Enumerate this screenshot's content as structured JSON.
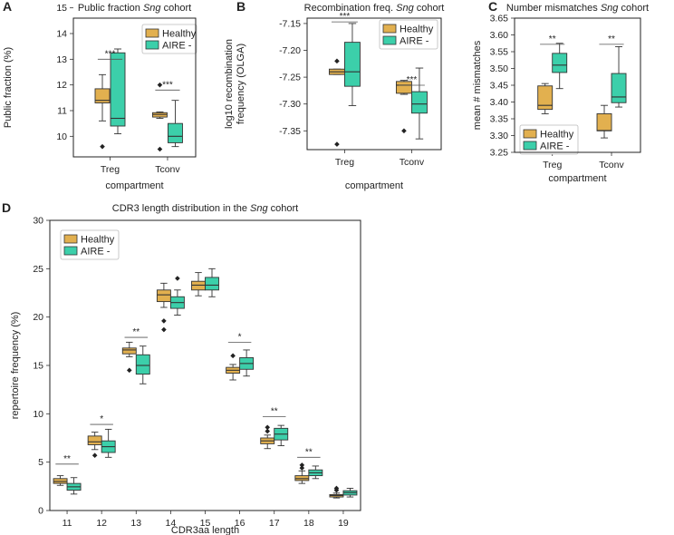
{
  "colors": {
    "healthy": "#E2B04F",
    "aire": "#3CCFAA",
    "line": "#333333"
  },
  "chart_data": [
    {
      "id": "A",
      "type": "boxplot",
      "panel_label": "A",
      "title_pre": "Public fraction ",
      "title_italic": "Sng",
      "title_post": " cohort",
      "xlabel": "compartment",
      "ylabel": "Public fraction (%)",
      "ylim": [
        9.2,
        14.6
      ],
      "yticks": [
        10,
        11,
        12,
        13,
        14,
        15
      ],
      "categories": [
        "Treg",
        "Tconv"
      ],
      "legend": [
        "Healthy",
        "AIRE -"
      ],
      "legend_pos": "top-right",
      "boxes": [
        {
          "cat": 0,
          "series": "Healthy",
          "whislo": 10.6,
          "q1": 11.3,
          "med": 11.4,
          "q3": 11.85,
          "whishi": 12.4,
          "fliers": [
            9.6
          ]
        },
        {
          "cat": 0,
          "series": "AIRE -",
          "whislo": 10.1,
          "q1": 10.4,
          "med": 10.7,
          "q3": 13.25,
          "whishi": 13.4,
          "fliers": []
        },
        {
          "cat": 1,
          "series": "Healthy",
          "whislo": 10.7,
          "q1": 10.75,
          "med": 10.85,
          "q3": 10.92,
          "whishi": 10.95,
          "fliers": [
            12.0,
            9.5
          ]
        },
        {
          "cat": 1,
          "series": "AIRE -",
          "whislo": 9.6,
          "q1": 9.75,
          "med": 10.0,
          "q3": 10.5,
          "whishi": 11.4,
          "fliers": []
        }
      ],
      "significance": [
        {
          "cat": 0,
          "label": "***",
          "y": 13.0
        },
        {
          "cat": 1,
          "label": "***",
          "y": 11.8
        }
      ]
    },
    {
      "id": "B",
      "type": "boxplot",
      "panel_label": "B",
      "title_pre": "Recombination freq. ",
      "title_italic": "Sng",
      "title_post": " cohort",
      "xlabel": "compartment",
      "ylabel": "log10 recombination frequency (OLGA)",
      "ylim": [
        -7.385,
        -7.14
      ],
      "yticks": [
        -7.15,
        -7.2,
        -7.25,
        -7.3,
        -7.35
      ],
      "tick_labels": [
        "-7.15",
        "-7.20",
        "-7.25",
        "-7.30",
        "-7.35"
      ],
      "categories": [
        "Treg",
        "Tconv"
      ],
      "legend": [
        "Healthy",
        "AIRE -"
      ],
      "legend_pos": "top-right",
      "boxes": [
        {
          "cat": 0,
          "series": "Healthy",
          "whislo": -7.245,
          "q1": -7.245,
          "med": -7.24,
          "q3": -7.235,
          "whishi": -7.235,
          "fliers": [
            -7.22,
            -7.375
          ]
        },
        {
          "cat": 0,
          "series": "AIRE -",
          "whislo": -7.303,
          "q1": -7.267,
          "med": -7.24,
          "q3": -7.185,
          "whishi": -7.15,
          "fliers": []
        },
        {
          "cat": 1,
          "series": "Healthy",
          "whislo": -7.282,
          "q1": -7.28,
          "med": -7.265,
          "q3": -7.258,
          "whishi": -7.256,
          "fliers": [
            -7.35
          ]
        },
        {
          "cat": 1,
          "series": "AIRE -",
          "whislo": -7.365,
          "q1": -7.317,
          "med": -7.3,
          "q3": -7.277,
          "whishi": -7.233,
          "fliers": []
        }
      ],
      "significance": [
        {
          "cat": 0,
          "label": "***",
          "y": -7.147
        },
        {
          "cat": 1,
          "label": "***",
          "y": -7.265
        }
      ]
    },
    {
      "id": "C",
      "type": "boxplot",
      "panel_label": "C",
      "title_pre": "Number mismatches ",
      "title_italic": "Sng",
      "title_post": " cohort",
      "xlabel": "compartment",
      "ylabel": "mean # mismatches",
      "ylim": [
        3.25,
        3.65
      ],
      "yticks": [
        3.25,
        3.3,
        3.35,
        3.4,
        3.45,
        3.5,
        3.55,
        3.6,
        3.65
      ],
      "tick_labels": [
        "3.25",
        "3.30",
        "3.35",
        "3.40",
        "3.45",
        "3.50",
        "3.55",
        "3.60",
        "3.65"
      ],
      "categories": [
        "Treg",
        "Tconv"
      ],
      "legend": [
        "Healthy",
        "AIRE -"
      ],
      "legend_pos": "bottom-left",
      "boxes": [
        {
          "cat": 0,
          "series": "Healthy",
          "whislo": 3.365,
          "q1": 3.378,
          "med": 3.39,
          "q3": 3.448,
          "whishi": 3.455,
          "fliers": []
        },
        {
          "cat": 0,
          "series": "AIRE -",
          "whislo": 3.44,
          "q1": 3.488,
          "med": 3.51,
          "q3": 3.545,
          "whishi": 3.575,
          "fliers": []
        },
        {
          "cat": 1,
          "series": "Healthy",
          "whislo": 3.293,
          "q1": 3.314,
          "med": 3.315,
          "q3": 3.365,
          "whishi": 3.39,
          "fliers": []
        },
        {
          "cat": 1,
          "series": "AIRE -",
          "whislo": 3.385,
          "q1": 3.398,
          "med": 3.415,
          "q3": 3.485,
          "whishi": 3.565,
          "fliers": []
        }
      ],
      "significance": [
        {
          "cat": 0,
          "label": "**",
          "y": 3.572
        },
        {
          "cat": 1,
          "label": "**",
          "y": 3.572
        }
      ]
    },
    {
      "id": "D",
      "type": "boxplot",
      "panel_label": "D",
      "title_pre": "CDR3 length distribution in the ",
      "title_italic": "Sng",
      "title_post": " cohort",
      "xlabel": "CDR3aa length",
      "ylabel": "repertoire frequency (%)",
      "ylim": [
        0,
        30
      ],
      "yticks": [
        0,
        5,
        10,
        15,
        20,
        25,
        30
      ],
      "categories": [
        "11",
        "12",
        "13",
        "14",
        "15",
        "16",
        "17",
        "18",
        "19"
      ],
      "legend": [
        "Healthy",
        "AIRE -"
      ],
      "legend_pos": "top-left",
      "boxes": [
        {
          "cat": 0,
          "series": "Healthy",
          "whislo": 2.6,
          "q1": 2.8,
          "med": 3.0,
          "q3": 3.3,
          "whishi": 3.6,
          "fliers": []
        },
        {
          "cat": 0,
          "series": "AIRE -",
          "whislo": 1.7,
          "q1": 2.1,
          "med": 2.45,
          "q3": 2.8,
          "whishi": 3.4,
          "fliers": []
        },
        {
          "cat": 1,
          "series": "Healthy",
          "whislo": 6.3,
          "q1": 6.8,
          "med": 7.1,
          "q3": 7.7,
          "whishi": 8.1,
          "fliers": [
            5.7
          ]
        },
        {
          "cat": 1,
          "series": "AIRE -",
          "whislo": 5.5,
          "q1": 6.0,
          "med": 6.6,
          "q3": 7.2,
          "whishi": 8.4,
          "fliers": []
        },
        {
          "cat": 2,
          "series": "Healthy",
          "whislo": 15.9,
          "q1": 16.2,
          "med": 16.6,
          "q3": 16.8,
          "whishi": 17.4,
          "fliers": [
            14.5
          ]
        },
        {
          "cat": 2,
          "series": "AIRE -",
          "whislo": 13.1,
          "q1": 14.1,
          "med": 15.0,
          "q3": 16.1,
          "whishi": 17.0,
          "fliers": []
        },
        {
          "cat": 3,
          "series": "Healthy",
          "whislo": 21.0,
          "q1": 21.6,
          "med": 22.3,
          "q3": 22.8,
          "whishi": 23.5,
          "fliers": [
            19.6,
            18.7
          ]
        },
        {
          "cat": 3,
          "series": "AIRE -",
          "whislo": 20.2,
          "q1": 20.9,
          "med": 21.5,
          "q3": 22.1,
          "whishi": 22.8,
          "fliers": [
            24.0
          ]
        },
        {
          "cat": 4,
          "series": "Healthy",
          "whislo": 22.2,
          "q1": 22.8,
          "med": 23.3,
          "q3": 23.7,
          "whishi": 24.6,
          "fliers": []
        },
        {
          "cat": 4,
          "series": "AIRE -",
          "whislo": 22.1,
          "q1": 22.8,
          "med": 23.3,
          "q3": 24.1,
          "whishi": 25.0,
          "fliers": []
        },
        {
          "cat": 5,
          "series": "Healthy",
          "whislo": 13.5,
          "q1": 14.2,
          "med": 14.5,
          "q3": 14.8,
          "whishi": 15.1,
          "fliers": [
            16.0
          ]
        },
        {
          "cat": 5,
          "series": "AIRE -",
          "whislo": 13.9,
          "q1": 14.6,
          "med": 15.2,
          "q3": 15.8,
          "whishi": 16.6,
          "fliers": []
        },
        {
          "cat": 6,
          "series": "Healthy",
          "whislo": 6.4,
          "q1": 6.9,
          "med": 7.2,
          "q3": 7.5,
          "whishi": 7.8,
          "fliers": [
            8.6,
            8.2
          ]
        },
        {
          "cat": 6,
          "series": "AIRE -",
          "whislo": 6.7,
          "q1": 7.3,
          "med": 7.9,
          "q3": 8.5,
          "whishi": 8.8,
          "fliers": []
        },
        {
          "cat": 7,
          "series": "Healthy",
          "whislo": 2.8,
          "q1": 3.1,
          "med": 3.3,
          "q3": 3.6,
          "whishi": 4.1,
          "fliers": [
            4.7,
            4.4
          ]
        },
        {
          "cat": 7,
          "series": "AIRE -",
          "whislo": 3.3,
          "q1": 3.6,
          "med": 3.9,
          "q3": 4.2,
          "whishi": 4.6,
          "fliers": []
        },
        {
          "cat": 8,
          "series": "Healthy",
          "whislo": 1.3,
          "q1": 1.4,
          "med": 1.55,
          "q3": 1.65,
          "whishi": 1.8,
          "fliers": [
            2.3,
            2.1
          ]
        },
        {
          "cat": 8,
          "series": "AIRE -",
          "whislo": 1.4,
          "q1": 1.6,
          "med": 1.85,
          "q3": 2.05,
          "whishi": 2.3,
          "fliers": []
        }
      ],
      "significance": [
        {
          "cat": 0,
          "label": "**",
          "y": 4.8
        },
        {
          "cat": 1,
          "label": "*",
          "y": 8.9
        },
        {
          "cat": 2,
          "label": "**",
          "y": 17.9
        },
        {
          "cat": 5,
          "label": "*",
          "y": 17.4
        },
        {
          "cat": 6,
          "label": "**",
          "y": 9.7
        },
        {
          "cat": 7,
          "label": "**",
          "y": 5.5
        }
      ]
    }
  ]
}
